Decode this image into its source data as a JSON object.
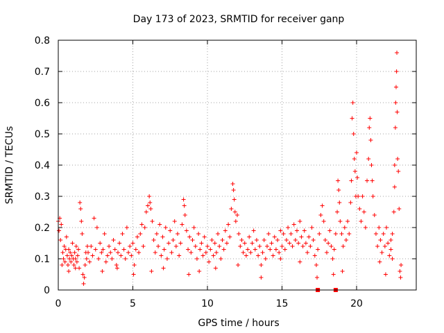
{
  "chart_data": {
    "type": "scatter",
    "title": "Day 173 of 2023, SRMTID for receiver ganp",
    "xlabel": "GPS time / hours",
    "ylabel": "SRMTID / TECUs",
    "xlim": [
      0,
      24
    ],
    "ylim": [
      0,
      0.8
    ],
    "xticks": [
      0,
      5,
      10,
      15,
      20
    ],
    "yticks": [
      0,
      0.1,
      0.2,
      0.3,
      0.4,
      0.5,
      0.6,
      0.7,
      0.8
    ],
    "xtick_labels": [
      "0",
      "5",
      "10",
      "15",
      "20"
    ],
    "ytick_labels": [
      "0",
      "0.1",
      "0.2",
      "0.3",
      "0.4",
      "0.5",
      "0.6",
      "0.7",
      "0.8"
    ],
    "grid": true,
    "marker": "+",
    "color": "#ff0000",
    "series": [
      {
        "name": "SRMTID",
        "points": [
          [
            0.0,
            0.22
          ],
          [
            0.05,
            0.19
          ],
          [
            0.1,
            0.23
          ],
          [
            0.15,
            0.16
          ],
          [
            0.2,
            0.21
          ],
          [
            0.25,
            0.08
          ],
          [
            0.3,
            0.12
          ],
          [
            0.35,
            0.1
          ],
          [
            0.4,
            0.14
          ],
          [
            0.45,
            0.09
          ],
          [
            0.5,
            0.13
          ],
          [
            0.55,
            0.17
          ],
          [
            0.6,
            0.11
          ],
          [
            0.65,
            0.08
          ],
          [
            0.7,
            0.13
          ],
          [
            0.75,
            0.1
          ],
          [
            0.8,
            0.12
          ],
          [
            0.85,
            0.09
          ],
          [
            0.9,
            0.11
          ],
          [
            0.95,
            0.15
          ],
          [
            1.0,
            0.1
          ],
          [
            1.05,
            0.08
          ],
          [
            1.1,
            0.12
          ],
          [
            1.15,
            0.1
          ],
          [
            1.2,
            0.14
          ],
          [
            1.25,
            0.09
          ],
          [
            1.3,
            0.11
          ],
          [
            1.35,
            0.13
          ],
          [
            1.4,
            0.07
          ],
          [
            1.45,
            0.28
          ],
          [
            1.5,
            0.26
          ],
          [
            1.55,
            0.22
          ],
          [
            1.6,
            0.18
          ],
          [
            1.65,
            0.05
          ],
          [
            1.7,
            0.02
          ],
          [
            1.75,
            0.04
          ],
          [
            1.8,
            0.08
          ],
          [
            1.85,
            0.12
          ],
          [
            1.9,
            0.1
          ],
          [
            1.95,
            0.14
          ],
          [
            2.0,
            0.12
          ],
          [
            2.1,
            0.09
          ],
          [
            2.2,
            0.14
          ],
          [
            2.3,
            0.11
          ],
          [
            2.4,
            0.23
          ],
          [
            2.5,
            0.13
          ],
          [
            2.6,
            0.2
          ],
          [
            2.7,
            0.1
          ],
          [
            2.8,
            0.15
          ],
          [
            2.9,
            0.12
          ],
          [
            3.0,
            0.13
          ],
          [
            3.1,
            0.18
          ],
          [
            3.2,
            0.09
          ],
          [
            3.3,
            0.11
          ],
          [
            3.4,
            0.14
          ],
          [
            3.5,
            0.12
          ],
          [
            3.6,
            0.1
          ],
          [
            3.7,
            0.16
          ],
          [
            3.8,
            0.13
          ],
          [
            3.9,
            0.08
          ],
          [
            4.0,
            0.12
          ],
          [
            4.1,
            0.15
          ],
          [
            4.2,
            0.11
          ],
          [
            4.3,
            0.18
          ],
          [
            4.4,
            0.13
          ],
          [
            4.5,
            0.1
          ],
          [
            4.6,
            0.2
          ],
          [
            4.7,
            0.12
          ],
          [
            4.8,
            0.14
          ],
          [
            4.9,
            0.11
          ],
          [
            5.0,
            0.15
          ],
          [
            5.1,
            0.08
          ],
          [
            5.2,
            0.13
          ],
          [
            5.3,
            0.17
          ],
          [
            5.4,
            0.12
          ],
          [
            5.5,
            0.18
          ],
          [
            5.6,
            0.21
          ],
          [
            5.7,
            0.14
          ],
          [
            5.8,
            0.2
          ],
          [
            5.9,
            0.25
          ],
          [
            6.0,
            0.27
          ],
          [
            6.1,
            0.3
          ],
          [
            6.15,
            0.28
          ],
          [
            6.2,
            0.26
          ],
          [
            6.3,
            0.22
          ],
          [
            6.4,
            0.16
          ],
          [
            6.5,
            0.12
          ],
          [
            6.6,
            0.18
          ],
          [
            6.7,
            0.14
          ],
          [
            6.8,
            0.21
          ],
          [
            6.9,
            0.11
          ],
          [
            7.0,
            0.17
          ],
          [
            7.1,
            0.13
          ],
          [
            7.2,
            0.2
          ],
          [
            7.3,
            0.1
          ],
          [
            7.4,
            0.15
          ],
          [
            7.5,
            0.19
          ],
          [
            7.6,
            0.12
          ],
          [
            7.7,
            0.16
          ],
          [
            7.8,
            0.22
          ],
          [
            7.9,
            0.14
          ],
          [
            8.0,
            0.18
          ],
          [
            8.1,
            0.11
          ],
          [
            8.2,
            0.15
          ],
          [
            8.3,
            0.21
          ],
          [
            8.4,
            0.29
          ],
          [
            8.45,
            0.27
          ],
          [
            8.5,
            0.24
          ],
          [
            8.6,
            0.19
          ],
          [
            8.7,
            0.13
          ],
          [
            8.8,
            0.17
          ],
          [
            8.9,
            0.12
          ],
          [
            9.0,
            0.16
          ],
          [
            9.1,
            0.2
          ],
          [
            9.2,
            0.14
          ],
          [
            9.3,
            0.1
          ],
          [
            9.4,
            0.18
          ],
          [
            9.5,
            0.13
          ],
          [
            9.6,
            0.15
          ],
          [
            9.7,
            0.11
          ],
          [
            9.8,
            0.17
          ],
          [
            9.9,
            0.12
          ],
          [
            10.0,
            0.14
          ],
          [
            10.1,
            0.09
          ],
          [
            10.2,
            0.13
          ],
          [
            10.3,
            0.16
          ],
          [
            10.4,
            0.11
          ],
          [
            10.5,
            0.15
          ],
          [
            10.6,
            0.12
          ],
          [
            10.7,
            0.18
          ],
          [
            10.8,
            0.14
          ],
          [
            10.9,
            0.1
          ],
          [
            11.0,
            0.16
          ],
          [
            11.1,
            0.13
          ],
          [
            11.2,
            0.19
          ],
          [
            11.3,
            0.15
          ],
          [
            11.4,
            0.21
          ],
          [
            11.5,
            0.17
          ],
          [
            11.6,
            0.26
          ],
          [
            11.7,
            0.34
          ],
          [
            11.75,
            0.32
          ],
          [
            11.8,
            0.29
          ],
          [
            11.85,
            0.25
          ],
          [
            11.9,
            0.22
          ],
          [
            12.0,
            0.24
          ],
          [
            12.1,
            0.18
          ],
          [
            12.2,
            0.14
          ],
          [
            12.3,
            0.16
          ],
          [
            12.4,
            0.12
          ],
          [
            12.5,
            0.15
          ],
          [
            12.6,
            0.11
          ],
          [
            12.7,
            0.13
          ],
          [
            12.8,
            0.17
          ],
          [
            12.9,
            0.12
          ],
          [
            13.0,
            0.15
          ],
          [
            13.1,
            0.19
          ],
          [
            13.2,
            0.13
          ],
          [
            13.3,
            0.16
          ],
          [
            13.4,
            0.11
          ],
          [
            13.5,
            0.14
          ],
          [
            13.6,
            0.08
          ],
          [
            13.7,
            0.12
          ],
          [
            13.8,
            0.16
          ],
          [
            13.9,
            0.1
          ],
          [
            14.0,
            0.14
          ],
          [
            14.1,
            0.18
          ],
          [
            14.2,
            0.13
          ],
          [
            14.3,
            0.15
          ],
          [
            14.4,
            0.11
          ],
          [
            14.5,
            0.17
          ],
          [
            14.6,
            0.13
          ],
          [
            14.7,
            0.16
          ],
          [
            14.8,
            0.12
          ],
          [
            14.9,
            0.19
          ],
          [
            15.0,
            0.14
          ],
          [
            15.1,
            0.18
          ],
          [
            15.2,
            0.13
          ],
          [
            15.3,
            0.16
          ],
          [
            15.4,
            0.2
          ],
          [
            15.5,
            0.15
          ],
          [
            15.6,
            0.18
          ],
          [
            15.7,
            0.14
          ],
          [
            15.8,
            0.21
          ],
          [
            15.9,
            0.16
          ],
          [
            16.0,
            0.19
          ],
          [
            16.1,
            0.15
          ],
          [
            16.2,
            0.22
          ],
          [
            16.3,
            0.17
          ],
          [
            16.4,
            0.14
          ],
          [
            16.5,
            0.19
          ],
          [
            16.6,
            0.15
          ],
          [
            16.7,
            0.12
          ],
          [
            16.8,
            0.17
          ],
          [
            16.9,
            0.14
          ],
          [
            17.0,
            0.2
          ],
          [
            17.1,
            0.16
          ],
          [
            17.2,
            0.11
          ],
          [
            17.3,
            0.08
          ],
          [
            17.4,
            0.13
          ],
          [
            17.5,
            0.18
          ],
          [
            17.6,
            0.24
          ],
          [
            17.7,
            0.27
          ],
          [
            17.8,
            0.22
          ],
          [
            17.9,
            0.16
          ],
          [
            18.0,
            0.12
          ],
          [
            18.1,
            0.15
          ],
          [
            18.2,
            0.19
          ],
          [
            18.3,
            0.14
          ],
          [
            18.4,
            0.1
          ],
          [
            18.5,
            0.13
          ],
          [
            18.6,
            0.18
          ],
          [
            18.7,
            0.25
          ],
          [
            18.75,
            0.35
          ],
          [
            18.8,
            0.32
          ],
          [
            18.85,
            0.28
          ],
          [
            18.9,
            0.22
          ],
          [
            19.0,
            0.18
          ],
          [
            19.1,
            0.14
          ],
          [
            19.2,
            0.2
          ],
          [
            19.3,
            0.16
          ],
          [
            19.4,
            0.22
          ],
          [
            19.5,
            0.18
          ],
          [
            19.6,
            0.28
          ],
          [
            19.65,
            0.35
          ],
          [
            19.7,
            0.55
          ],
          [
            19.75,
            0.6
          ],
          [
            19.8,
            0.5
          ],
          [
            19.85,
            0.42
          ],
          [
            19.9,
            0.38
          ],
          [
            19.95,
            0.3
          ],
          [
            20.0,
            0.44
          ],
          [
            20.05,
            0.36
          ],
          [
            20.1,
            0.3
          ],
          [
            20.2,
            0.26
          ],
          [
            20.3,
            0.22
          ],
          [
            20.4,
            0.3
          ],
          [
            20.5,
            0.25
          ],
          [
            20.6,
            0.2
          ],
          [
            20.7,
            0.35
          ],
          [
            20.8,
            0.42
          ],
          [
            20.85,
            0.52
          ],
          [
            20.9,
            0.55
          ],
          [
            20.95,
            0.48
          ],
          [
            21.0,
            0.4
          ],
          [
            21.05,
            0.35
          ],
          [
            21.1,
            0.3
          ],
          [
            21.2,
            0.24
          ],
          [
            21.3,
            0.18
          ],
          [
            21.4,
            0.14
          ],
          [
            21.5,
            0.2
          ],
          [
            21.6,
            0.16
          ],
          [
            21.7,
            0.12
          ],
          [
            21.8,
            0.18
          ],
          [
            21.9,
            0.14
          ],
          [
            22.0,
            0.2
          ],
          [
            22.1,
            0.15
          ],
          [
            22.2,
            0.11
          ],
          [
            22.3,
            0.16
          ],
          [
            22.4,
            0.1
          ],
          [
            22.5,
            0.25
          ],
          [
            22.55,
            0.4
          ],
          [
            22.6,
            0.52
          ],
          [
            22.62,
            0.6
          ],
          [
            22.65,
            0.65
          ],
          [
            22.68,
            0.7
          ],
          [
            22.7,
            0.76
          ],
          [
            22.72,
            0.57
          ],
          [
            22.75,
            0.42
          ],
          [
            22.8,
            0.38
          ],
          [
            22.85,
            0.26
          ],
          [
            22.9,
            0.06
          ],
          [
            22.95,
            0.04
          ],
          [
            22.98,
            0.08
          ],
          [
            22.55,
            0.33
          ],
          [
            22.4,
            0.18
          ],
          [
            22.3,
            0.13
          ],
          [
            21.95,
            0.05
          ],
          [
            21.55,
            0.09
          ],
          [
            19.05,
            0.06
          ],
          [
            18.45,
            0.05
          ],
          [
            17.35,
            0.04
          ],
          [
            16.2,
            0.09
          ],
          [
            14.9,
            0.1
          ],
          [
            13.6,
            0.04
          ],
          [
            12.05,
            0.08
          ],
          [
            10.55,
            0.07
          ],
          [
            9.45,
            0.06
          ],
          [
            8.75,
            0.05
          ],
          [
            7.05,
            0.07
          ],
          [
            6.25,
            0.06
          ],
          [
            5.05,
            0.05
          ],
          [
            3.95,
            0.07
          ],
          [
            2.95,
            0.06
          ],
          [
            0.7,
            0.06
          ],
          [
            1.15,
            0.07
          ]
        ]
      }
    ],
    "gap_markers_x": [
      17.4,
      18.6
    ]
  }
}
